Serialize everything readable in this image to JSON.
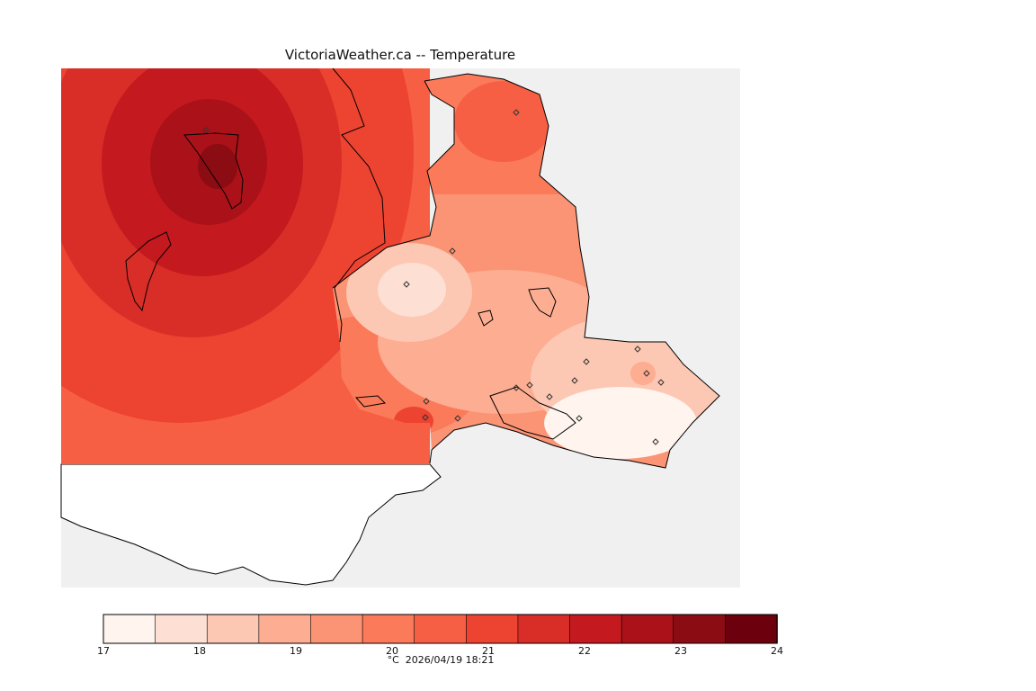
{
  "title": "VictoriaWeather.ca -- Temperature",
  "legend": {
    "unit": "°C",
    "timestamp": "2026/04/19 18:21",
    "min": 17,
    "max": 24,
    "tick_labels": [
      "17",
      "18",
      "19",
      "20",
      "21",
      "22",
      "23",
      "24"
    ],
    "colors": [
      "#fff4ee",
      "#fde0d3",
      "#fcc8b3",
      "#fcad92",
      "#fb9474",
      "#fb7a5a",
      "#f65f43",
      "#ed4331",
      "#d92d27",
      "#c3191f",
      "#aa1119",
      "#8c0c14",
      "#6c010d"
    ]
  },
  "stations_count": 17
}
